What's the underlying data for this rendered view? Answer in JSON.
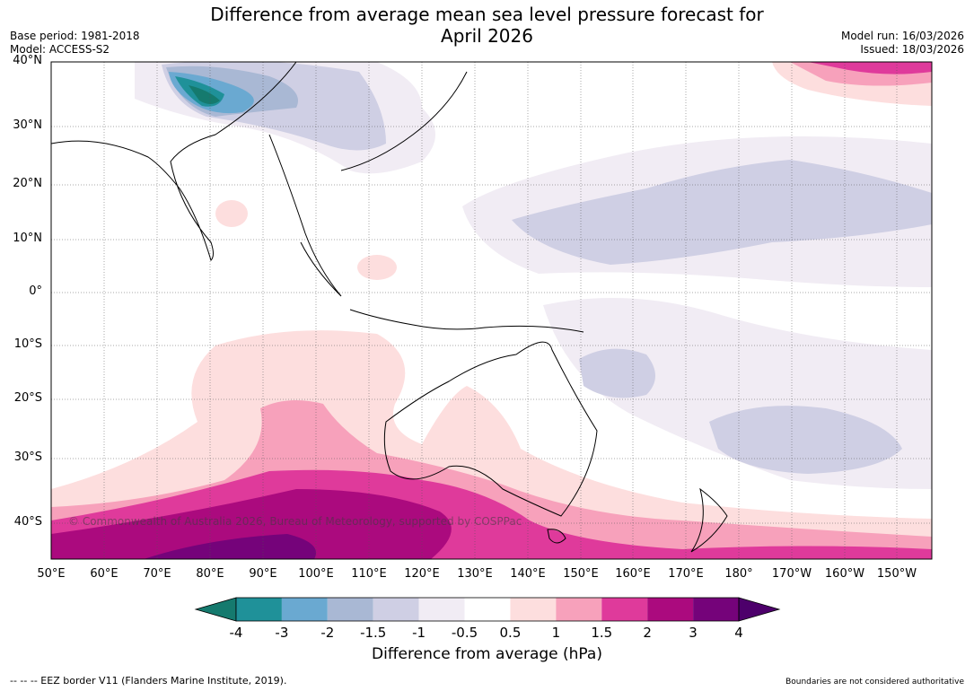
{
  "title_line1": "Difference from average mean sea level pressure forecast for",
  "title_line2": "April 2026",
  "meta_left": {
    "base_period": "Base period: 1981-2018",
    "model": "Model: ACCESS-S2"
  },
  "meta_right": {
    "model_run": "Model run: 16/03/2026",
    "issued": "Issued: 18/03/2026"
  },
  "lat_ticks": [
    "40°N",
    "30°N",
    "20°N",
    "10°N",
    "0°",
    "10°S",
    "20°S",
    "30°S",
    "40°S"
  ],
  "lon_ticks": [
    "50°E",
    "60°E",
    "70°E",
    "80°E",
    "90°E",
    "100°E",
    "110°E",
    "120°E",
    "130°E",
    "140°E",
    "150°E",
    "160°E",
    "170°E",
    "180°",
    "170°W",
    "160°W",
    "150°W"
  ],
  "colorbar": {
    "labels": [
      "-4",
      "-3",
      "-2",
      "-1.5",
      "-1",
      "-0.5",
      "0.5",
      "1",
      "1.5",
      "2",
      "3",
      "4"
    ],
    "colors": [
      "#157a6e",
      "#1f9199",
      "#6aa9d1",
      "#a9b8d4",
      "#cfcfe4",
      "#f1ecf4",
      "#ffffff",
      "#fddede",
      "#f7a1bb",
      "#df3a9b",
      "#ab0a7e",
      "#75037a",
      "#4d006b"
    ],
    "title": "Difference from average (hPa)"
  },
  "copyright": "© Commonwealth of Australia 2026, Bureau of Meteorology, supported by COSPPac",
  "footer_left": "--  --  -- EEZ border V11 (Flanders Marine Institute, 2019).",
  "footer_right": "Boundaries are not considered authoritative"
}
